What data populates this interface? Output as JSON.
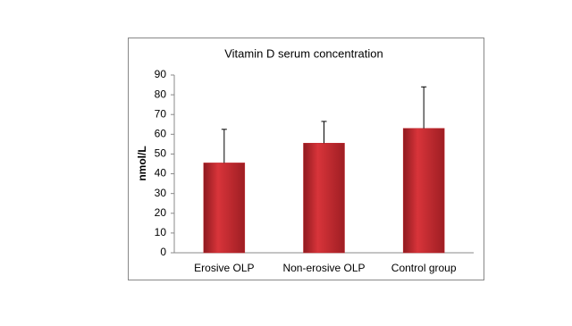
{
  "chart_data": {
    "type": "bar",
    "title": "Vitamin D serum concentration",
    "y_label": "nmol/L",
    "categories": [
      "Erosive OLP",
      "Non-erosive OLP",
      "Control group"
    ],
    "values": [
      45.5,
      55.5,
      63
    ],
    "errors": [
      17,
      11,
      21
    ],
    "color": "#c0272d",
    "ylim": [
      0,
      90
    ],
    "yticks": [
      0,
      10,
      20,
      30,
      40,
      50,
      60,
      70,
      80,
      90
    ],
    "grid": false
  }
}
